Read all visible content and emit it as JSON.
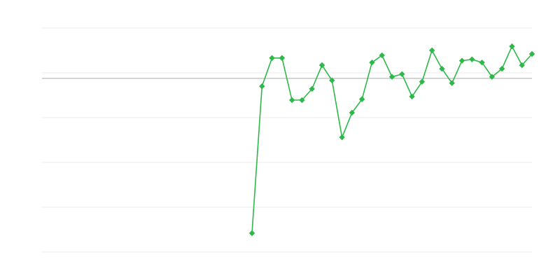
{
  "chart_data": {
    "type": "line",
    "title": "",
    "xlabel": "",
    "ylabel": "",
    "x_range": [
      0,
      49
    ],
    "ylim": [
      0,
      5
    ],
    "gridlines": [
      0,
      1,
      2,
      3,
      4,
      5
    ],
    "grid": true,
    "baseline": 3.875,
    "series": [
      {
        "color": "#2db84a",
        "marker": "diamond",
        "x": [
          21,
          22,
          23,
          24,
          25,
          26,
          27,
          28,
          29,
          30,
          31,
          32,
          33,
          34,
          35,
          36,
          37,
          38,
          39,
          40,
          41,
          42,
          43,
          44,
          45,
          46,
          47,
          48,
          49
        ],
        "values": [
          0.42,
          3.7,
          4.33,
          4.33,
          3.39,
          3.39,
          3.64,
          4.17,
          3.83,
          2.56,
          3.11,
          3.41,
          4.23,
          4.39,
          3.91,
          3.97,
          3.47,
          3.8,
          4.5,
          4.09,
          3.77,
          4.27,
          4.3,
          4.23,
          3.91,
          4.09,
          4.59,
          4.17,
          4.42
        ]
      }
    ]
  },
  "colors": {
    "grid": "#ebebeb",
    "baseline": "#aaaaaa",
    "series": "#2db84a"
  }
}
